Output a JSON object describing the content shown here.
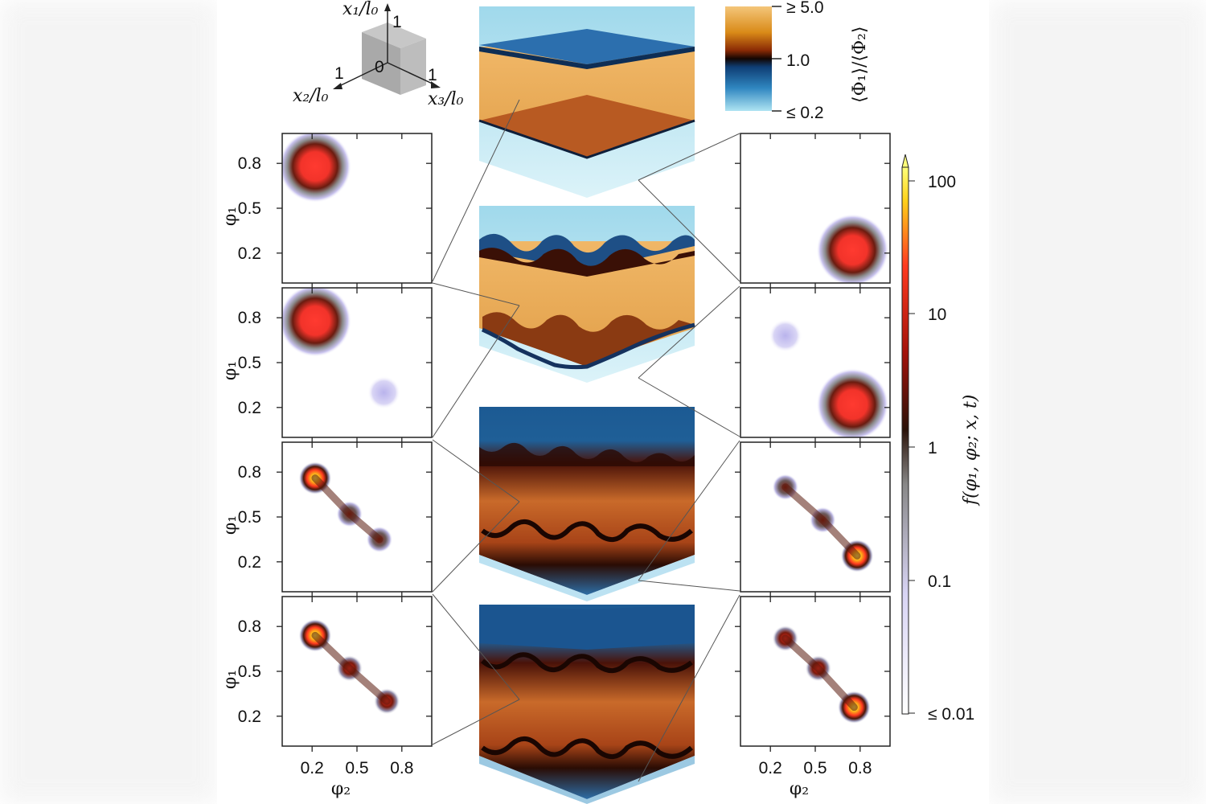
{
  "axes_triad": {
    "x1": "x₁/l₀",
    "x2": "x₂/l₀",
    "x3": "x₃/l₀",
    "origin": "0",
    "one": "1"
  },
  "ratio_colorbar": {
    "label": "⟨Φ₁⟩/⟨Φ₂⟩",
    "ticks": [
      "≥ 5.0",
      "1.0",
      "≤ 0.2"
    ],
    "colors": [
      "#f4c67a",
      "#d98a18",
      "#8a2a05",
      "#120502",
      "#0f3e74",
      "#2f86c0",
      "#aee4f2"
    ]
  },
  "pdf_colorbar": {
    "label": "f(φ₁, φ₂; x, t)",
    "ticks": [
      "100",
      "10",
      "1",
      "0.1",
      "≤ 0.01"
    ],
    "colors": [
      "#ffffff",
      "#c7c3ee",
      "#777777",
      "#2a1208",
      "#a3120a",
      "#ff3a20",
      "#ffd21a",
      "#ffff7a"
    ]
  },
  "axes": {
    "y_label": "φ₁",
    "x_label": "φ₂",
    "y_ticks": [
      "0.8",
      "0.5",
      "0.2"
    ],
    "x_ticks": [
      "0.2",
      "0.5",
      "0.8"
    ]
  },
  "pdf_panels": {
    "left": [
      {
        "blobs": [
          {
            "phi2": 0.22,
            "phi1": 0.78,
            "peak": "max",
            "spread": 0.11
          }
        ]
      },
      {
        "blobs": [
          {
            "phi2": 0.22,
            "phi1": 0.78,
            "peak": "max",
            "spread": 0.11
          },
          {
            "phi2": 0.68,
            "phi1": 0.3,
            "peak": "faint",
            "spread": 0.05
          }
        ]
      },
      {
        "blobs": [
          {
            "phi2": 0.22,
            "phi1": 0.76,
            "peak": "very-high",
            "spread": 0.05
          },
          {
            "phi2": 0.45,
            "phi1": 0.52,
            "peak": "low",
            "spread": 0.04
          },
          {
            "phi2": 0.65,
            "phi1": 0.35,
            "peak": "low",
            "spread": 0.04
          }
        ]
      },
      {
        "blobs": [
          {
            "phi2": 0.22,
            "phi1": 0.74,
            "peak": "very-high",
            "spread": 0.05
          },
          {
            "phi2": 0.45,
            "phi1": 0.52,
            "peak": "medium",
            "spread": 0.04
          },
          {
            "phi2": 0.7,
            "phi1": 0.3,
            "peak": "medium",
            "spread": 0.04
          }
        ]
      }
    ],
    "right": [
      {
        "blobs": [
          {
            "phi2": 0.75,
            "phi1": 0.22,
            "peak": "max",
            "spread": 0.11
          }
        ]
      },
      {
        "blobs": [
          {
            "phi2": 0.75,
            "phi1": 0.22,
            "peak": "max",
            "spread": 0.11
          },
          {
            "phi2": 0.3,
            "phi1": 0.68,
            "peak": "faint",
            "spread": 0.05
          }
        ]
      },
      {
        "blobs": [
          {
            "phi2": 0.78,
            "phi1": 0.24,
            "peak": "very-high",
            "spread": 0.05
          },
          {
            "phi2": 0.55,
            "phi1": 0.48,
            "peak": "low",
            "spread": 0.04
          },
          {
            "phi2": 0.3,
            "phi1": 0.7,
            "peak": "low",
            "spread": 0.04
          }
        ]
      },
      {
        "blobs": [
          {
            "phi2": 0.76,
            "phi1": 0.26,
            "peak": "very-high",
            "spread": 0.05
          },
          {
            "phi2": 0.52,
            "phi1": 0.52,
            "peak": "medium",
            "spread": 0.04
          },
          {
            "phi2": 0.3,
            "phi1": 0.72,
            "peak": "medium",
            "spread": 0.04
          }
        ]
      }
    ]
  },
  "cubes": [
    {
      "state": "two flat interfaces"
    },
    {
      "state": "wavy interfaces"
    },
    {
      "state": "developing mixing layer"
    },
    {
      "state": "turbulent mixing layer"
    }
  ]
}
